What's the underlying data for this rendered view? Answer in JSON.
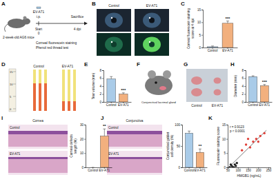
{
  "panel_letters": [
    "A",
    "B",
    "C",
    "D",
    "E",
    "F",
    "G",
    "H",
    "I",
    "J",
    "K"
  ],
  "schematic": {
    "mouse_label": "2-week-old AG6 mice",
    "virus": "EV-A71",
    "route": "i.p.",
    "start": "Start",
    "day0": "0",
    "end": "Sacrifice",
    "end_day": "4 dpi",
    "tests": [
      "Corneal fluorescein staining",
      "Phenol red thread test"
    ]
  },
  "photos": {
    "B": [
      "Control",
      "EV-A71"
    ],
    "D": {
      "labels": [
        "Control",
        "EV-A71"
      ],
      "ruler": [
        "15",
        "10",
        "5",
        "0"
      ]
    },
    "F": "Conjunctival lacrimal gland",
    "G": [
      "Control",
      "EV-A71"
    ],
    "I": {
      "title": "Cornea",
      "labels": [
        "Control",
        "EV-A71"
      ]
    },
    "J": {
      "title": "Conjunctiva",
      "labels": [
        "Control",
        "EV-A71"
      ]
    }
  },
  "chart_data": [
    {
      "type": "bar",
      "y_label": [
        "Corneal fluorescein staining",
        "score at 4 dpi"
      ],
      "categories": [
        "Control",
        "EV-A71"
      ],
      "values": [
        0.3,
        9.6
      ],
      "errors": [
        0.3,
        0.9
      ],
      "colors": [
        "#a9cbe8",
        "#f2b07e"
      ],
      "ylim": [
        0,
        15
      ],
      "yticks": [
        0,
        5,
        10,
        15
      ],
      "annotation": "***"
    },
    {
      "type": "bar",
      "y_label": [
        "Tear volume (mm)"
      ],
      "categories": [
        "Control",
        "EV-A71"
      ],
      "values": [
        5.8,
        2.0
      ],
      "errors": [
        0.6,
        0.3
      ],
      "colors": [
        "#a9cbe8",
        "#f2b07e"
      ],
      "ylim": [
        0,
        8
      ],
      "yticks": [
        0,
        2,
        4,
        6,
        8
      ],
      "annotation": "***"
    },
    {
      "type": "bar",
      "y_label": [
        "Diameter (mm)"
      ],
      "categories": [
        "Control",
        "EV-A71"
      ],
      "values": [
        6.4,
        4.1
      ],
      "errors": [
        0.2,
        0.3
      ],
      "colors": [
        "#a9cbe8",
        "#f2b07e"
      ],
      "ylim": [
        0,
        8
      ],
      "yticks": [
        0,
        2,
        4,
        6,
        8
      ],
      "annotation": "***"
    },
    {
      "type": "bar",
      "y_label": [
        "Corneal defects",
        "length (%)"
      ],
      "categories": [
        "Control",
        "EV-A71"
      ],
      "values": [
        0,
        22
      ],
      "errors": [
        0,
        5
      ],
      "colors": [
        "#a9cbe8",
        "#f2b07e"
      ],
      "ylim": [
        0,
        30
      ],
      "yticks": [
        0,
        10,
        20,
        30
      ],
      "annotation": "**"
    },
    {
      "type": "bar",
      "y_label": [
        "Conjunctival goblet",
        "cell density (%)"
      ],
      "categories": [
        "Control",
        "EV-A71"
      ],
      "values": [
        80,
        35
      ],
      "errors": [
        5,
        8
      ],
      "colors": [
        "#a9cbe8",
        "#f2b07e"
      ],
      "ylim": [
        0,
        100
      ],
      "yticks": [
        0,
        50,
        100
      ],
      "annotation": "**"
    },
    {
      "type": "scatter",
      "x_label": "HMGB1 (ng/mL)",
      "y_label": [
        "Fluorescein staining score"
      ],
      "x": [
        60,
        70,
        75,
        85,
        90,
        95,
        65,
        80,
        120,
        140,
        160,
        175,
        190,
        210,
        230,
        150,
        200
      ],
      "values": [
        0,
        0.5,
        0,
        1,
        0.5,
        1.5,
        1,
        0,
        6,
        8,
        7,
        9,
        10,
        11,
        12,
        10,
        9
      ],
      "colors": [
        "#222222",
        "#222222",
        "#222222",
        "#222222",
        "#222222",
        "#222222",
        "#222222",
        "#222222",
        "#e0413a",
        "#e0413a",
        "#e0413a",
        "#e0413a",
        "#e0413a",
        "#e0413a",
        "#e0413a",
        "#e0413a",
        "#e0413a"
      ],
      "fit": {
        "x": [
          55,
          240
        ],
        "values": [
          0,
          13
        ]
      },
      "xlim": [
        50,
        260
      ],
      "xticks": [
        50,
        100,
        150,
        200,
        250
      ],
      "ylim": [
        0,
        15
      ],
      "yticks": [
        0,
        5,
        10,
        15
      ],
      "annotation": [
        "r = 0.9123",
        "p < 0.0001"
      ]
    }
  ]
}
